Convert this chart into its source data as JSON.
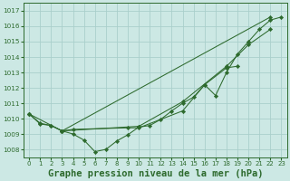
{
  "background_color": "#cce8e4",
  "grid_color": "#aacfcb",
  "line_color": "#2d6a2d",
  "xlabel": "Graphe pression niveau de la mer (hPa)",
  "xlabel_fontsize": 7.5,
  "ylim": [
    1007.5,
    1017.5
  ],
  "xlim": [
    -0.5,
    23.5
  ],
  "yticks": [
    1008,
    1009,
    1010,
    1011,
    1012,
    1013,
    1014,
    1015,
    1016,
    1017
  ],
  "xticks": [
    0,
    1,
    2,
    3,
    4,
    5,
    6,
    7,
    8,
    9,
    10,
    11,
    12,
    13,
    14,
    15,
    16,
    17,
    18,
    19,
    20,
    21,
    22,
    23
  ],
  "line1_x": [
    0,
    1,
    2,
    3,
    4,
    5,
    6,
    7,
    8,
    9,
    10,
    11,
    12,
    13,
    14,
    15,
    16,
    17,
    18,
    19,
    20,
    21,
    22,
    23
  ],
  "line1_y": [
    1010.3,
    1009.7,
    1009.55,
    1009.2,
    1009.0,
    1008.6,
    1007.85,
    1008.0,
    1008.55,
    1008.95,
    1009.45,
    1009.55,
    1009.95,
    1010.5,
    1011.0,
    1011.4,
    1012.2,
    1011.5,
    1013.0,
    1014.2,
    1015.0,
    1015.8,
    1016.4,
    1016.6
  ],
  "line2_x": [
    0,
    1,
    2,
    3,
    22
  ],
  "line2_y": [
    1010.3,
    1009.65,
    1009.55,
    1009.2,
    1016.6
  ],
  "line3_x": [
    0,
    3,
    10,
    14,
    18,
    20,
    22
  ],
  "line3_y": [
    1010.3,
    1009.2,
    1009.5,
    1011.1,
    1013.4,
    1014.8,
    1015.8
  ],
  "line4_x": [
    3,
    4,
    9,
    10,
    14,
    16,
    18,
    19
  ],
  "line4_y": [
    1009.2,
    1009.3,
    1009.4,
    1009.4,
    1010.5,
    1012.2,
    1013.3,
    1013.4
  ]
}
